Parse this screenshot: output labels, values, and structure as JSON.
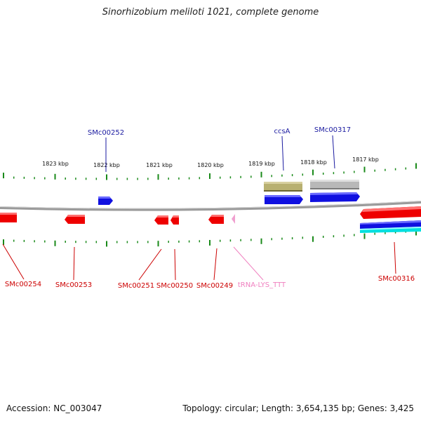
{
  "title": "Sinorhizobium meliloti 1021, complete genome",
  "footer": {
    "accession": "Accession: NC_003047",
    "summary": "Topology: circular; Length: 3,654,135 bp; Genes: 3,425"
  },
  "scale": {
    "labels": [
      "1823 kbp",
      "1822 kbp",
      "1821 kbp",
      "1820 kbp",
      "1819 kbp",
      "1818 kbp",
      "1817 kbp"
    ]
  },
  "features_top": [
    {
      "name": "SMc00252",
      "color": "#1a1aa0",
      "kind": "forward-gene",
      "fill": "#1010e0"
    },
    {
      "name": "ccsA",
      "color": "#1a1aa0",
      "kind": "forward-gene",
      "fill": "#1010e0"
    },
    {
      "name": "SMc00317",
      "color": "#1a1aa0",
      "kind": "forward-gene",
      "fill": "#1010e0"
    }
  ],
  "features_bottom": [
    {
      "name": "SMc00254",
      "color": "#cc0000"
    },
    {
      "name": "SMc00253",
      "color": "#cc0000"
    },
    {
      "name": "SMc00251",
      "color": "#cc0000"
    },
    {
      "name": "SMc00250",
      "color": "#cc0000"
    },
    {
      "name": "SMc00249",
      "color": "#cc0000"
    },
    {
      "name": "tRNA-LYS_TTT",
      "color": "#f080c0"
    },
    {
      "name": "SMc00316",
      "color": "#cc0000"
    }
  ],
  "colors": {
    "backbone": "#808080",
    "tick": "#1a8a1a",
    "reverse_gene": "#ee0000",
    "forward_gene": "#1010e0",
    "cds_olive": "#b8b070",
    "cds_gray": "#b8b8b8",
    "trna": "#f0a0d0",
    "cyan_track": "#00e0e0"
  }
}
